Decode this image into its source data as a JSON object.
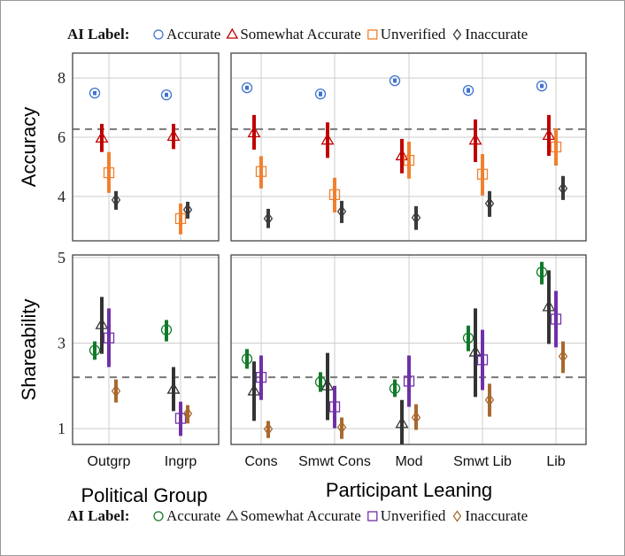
{
  "legend_top": {
    "title": "AI Label:",
    "entries": [
      {
        "label": "Accurate",
        "marker": "circle",
        "color": "#3f73cf"
      },
      {
        "label": "Somewhat Accurate",
        "marker": "triangle",
        "color": "#c00000"
      },
      {
        "label": "Unverified",
        "marker": "square",
        "color": "#f0802f"
      },
      {
        "label": "Inaccurate",
        "marker": "diamond",
        "color": "#3a3a3a"
      }
    ]
  },
  "legend_bottom": {
    "title": "AI Label:",
    "entries": [
      {
        "label": "Accurate",
        "marker": "circle",
        "color": "#107a28"
      },
      {
        "label": "Somewhat Accurate",
        "marker": "triangle",
        "color": "#333333"
      },
      {
        "label": "Unverified",
        "marker": "square",
        "color": "#7030a8"
      },
      {
        "label": "Inaccurate",
        "marker": "diamond",
        "color": "#a8692e"
      }
    ]
  },
  "xlabels": {
    "left": "Political Group",
    "right": "Participant Leaning"
  },
  "ylabels": {
    "top": "Accuracy",
    "bottom": "Shareability"
  },
  "chart_data": [
    {
      "type": "scatter",
      "panel": "accuracy-political-group",
      "ylabel": "Accuracy",
      "xlabel": "Political Group",
      "ylim": [
        2.5,
        8.84
      ],
      "yticks": [
        4,
        6,
        8
      ],
      "grid": true,
      "reference_line": 6.27,
      "categories": [
        "Outgrp",
        "Ingrp"
      ],
      "series": [
        {
          "name": "Accurate",
          "values": [
            {
              "mean": 7.49,
              "lo": 7.42,
              "hi": 7.56
            },
            {
              "mean": 7.43,
              "lo": 7.36,
              "hi": 7.5
            }
          ]
        },
        {
          "name": "Somewhat Accurate",
          "values": [
            {
              "mean": 5.97,
              "lo": 5.5,
              "hi": 6.45
            },
            {
              "mean": 6.03,
              "lo": 5.6,
              "hi": 6.45
            }
          ]
        },
        {
          "name": "Unverified",
          "values": [
            {
              "mean": 4.8,
              "lo": 4.12,
              "hi": 5.5
            },
            {
              "mean": 3.25,
              "lo": 2.72,
              "hi": 3.76
            }
          ]
        },
        {
          "name": "Inaccurate",
          "values": [
            {
              "mean": 3.88,
              "lo": 3.55,
              "hi": 4.18
            },
            {
              "mean": 3.55,
              "lo": 3.25,
              "hi": 3.82
            }
          ]
        }
      ]
    },
    {
      "type": "scatter",
      "panel": "accuracy-participant-leaning",
      "ylabel": "Accuracy",
      "xlabel": "Participant Leaning",
      "ylim": [
        2.5,
        8.84
      ],
      "yticks": [
        4,
        6,
        8
      ],
      "grid": true,
      "reference_line": 6.27,
      "categories": [
        "Cons",
        "Smwt Cons",
        "Mod",
        "Smwt Lib",
        "Lib"
      ],
      "series": [
        {
          "name": "Accurate",
          "values": [
            {
              "mean": 7.67,
              "lo": 7.6,
              "hi": 7.74
            },
            {
              "mean": 7.46,
              "lo": 7.38,
              "hi": 7.54
            },
            {
              "mean": 7.91,
              "lo": 7.84,
              "hi": 7.98
            },
            {
              "mean": 7.58,
              "lo": 7.5,
              "hi": 7.66
            },
            {
              "mean": 7.73,
              "lo": 7.66,
              "hi": 7.8
            }
          ]
        },
        {
          "name": "Somewhat Accurate",
          "values": [
            {
              "mean": 6.15,
              "lo": 5.58,
              "hi": 6.75
            },
            {
              "mean": 5.9,
              "lo": 5.3,
              "hi": 6.5
            },
            {
              "mean": 5.37,
              "lo": 4.78,
              "hi": 5.94
            },
            {
              "mean": 5.9,
              "lo": 5.16,
              "hi": 6.6
            },
            {
              "mean": 6.06,
              "lo": 5.37,
              "hi": 6.75
            }
          ]
        },
        {
          "name": "Unverified",
          "values": [
            {
              "mean": 4.84,
              "lo": 4.27,
              "hi": 5.36
            },
            {
              "mean": 4.06,
              "lo": 3.46,
              "hi": 4.63
            },
            {
              "mean": 5.22,
              "lo": 4.6,
              "hi": 5.85
            },
            {
              "mean": 4.75,
              "lo": 4.03,
              "hi": 5.43
            },
            {
              "mean": 5.67,
              "lo": 5.04,
              "hi": 6.3
            }
          ]
        },
        {
          "name": "Inaccurate",
          "values": [
            {
              "mean": 3.25,
              "lo": 2.93,
              "hi": 3.58
            },
            {
              "mean": 3.49,
              "lo": 3.1,
              "hi": 3.85
            },
            {
              "mean": 3.28,
              "lo": 2.87,
              "hi": 3.67
            },
            {
              "mean": 3.76,
              "lo": 3.31,
              "hi": 4.18
            },
            {
              "mean": 4.27,
              "lo": 3.88,
              "hi": 4.69
            }
          ]
        }
      ]
    },
    {
      "type": "scatter",
      "panel": "shareability-political-group",
      "ylabel": "Shareability",
      "xlabel": "Political Group",
      "ylim": [
        0.63,
        5.06
      ],
      "yticks": [
        1,
        3,
        5
      ],
      "grid": true,
      "reference_line": 2.2,
      "categories": [
        "Outgrp",
        "Ingrp"
      ],
      "series": [
        {
          "name": "Accurate",
          "values": [
            {
              "mean": 2.83,
              "lo": 2.61,
              "hi": 3.04
            },
            {
              "mean": 3.31,
              "lo": 3.04,
              "hi": 3.54
            }
          ]
        },
        {
          "name": "Somewhat Accurate",
          "values": [
            {
              "mean": 3.43,
              "lo": 2.75,
              "hi": 4.08
            },
            {
              "mean": 1.92,
              "lo": 1.41,
              "hi": 2.44
            }
          ]
        },
        {
          "name": "Unverified",
          "values": [
            {
              "mean": 3.12,
              "lo": 2.44,
              "hi": 3.81
            },
            {
              "mean": 1.24,
              "lo": 0.83,
              "hi": 1.63
            }
          ]
        },
        {
          "name": "Inaccurate",
          "values": [
            {
              "mean": 1.88,
              "lo": 1.61,
              "hi": 2.15
            },
            {
              "mean": 1.35,
              "lo": 1.12,
              "hi": 1.55
            }
          ]
        }
      ]
    },
    {
      "type": "scatter",
      "panel": "shareability-participant-leaning",
      "ylabel": "Shareability",
      "xlabel": "Participant Leaning",
      "ylim": [
        0.63,
        5.06
      ],
      "yticks": [
        1,
        3,
        5
      ],
      "grid": true,
      "reference_line": 2.2,
      "categories": [
        "Cons",
        "Smwt Cons",
        "Mod",
        "Smwt Lib",
        "Lib"
      ],
      "series": [
        {
          "name": "Accurate",
          "values": [
            {
              "mean": 2.63,
              "lo": 2.4,
              "hi": 2.86
            },
            {
              "mean": 2.09,
              "lo": 1.86,
              "hi": 2.32
            },
            {
              "mean": 1.94,
              "lo": 1.74,
              "hi": 2.15
            },
            {
              "mean": 3.12,
              "lo": 2.81,
              "hi": 3.41
            },
            {
              "mean": 4.66,
              "lo": 4.37,
              "hi": 4.9
            }
          ]
        },
        {
          "name": "Somewhat Accurate",
          "values": [
            {
              "mean": 1.88,
              "lo": 1.18,
              "hi": 2.57
            },
            {
              "mean": 2.0,
              "lo": 1.2,
              "hi": 2.77
            },
            {
              "mean": 1.12,
              "lo": 0.6,
              "hi": 1.67
            },
            {
              "mean": 2.79,
              "lo": 1.74,
              "hi": 3.81
            },
            {
              "mean": 3.85,
              "lo": 2.98,
              "hi": 4.7
            }
          ]
        },
        {
          "name": "Unverified",
          "values": [
            {
              "mean": 2.2,
              "lo": 1.67,
              "hi": 2.71
            },
            {
              "mean": 1.51,
              "lo": 1.01,
              "hi": 2.0
            },
            {
              "mean": 2.11,
              "lo": 1.51,
              "hi": 2.71
            },
            {
              "mean": 2.61,
              "lo": 1.9,
              "hi": 3.31
            },
            {
              "mean": 3.56,
              "lo": 2.9,
              "hi": 4.22
            }
          ]
        },
        {
          "name": "Inaccurate",
          "values": [
            {
              "mean": 0.99,
              "lo": 0.78,
              "hi": 1.18
            },
            {
              "mean": 1.03,
              "lo": 0.76,
              "hi": 1.26
            },
            {
              "mean": 1.26,
              "lo": 0.97,
              "hi": 1.57
            },
            {
              "mean": 1.67,
              "lo": 1.28,
              "hi": 2.05
            },
            {
              "mean": 2.69,
              "lo": 2.3,
              "hi": 3.04
            }
          ]
        }
      ]
    }
  ]
}
